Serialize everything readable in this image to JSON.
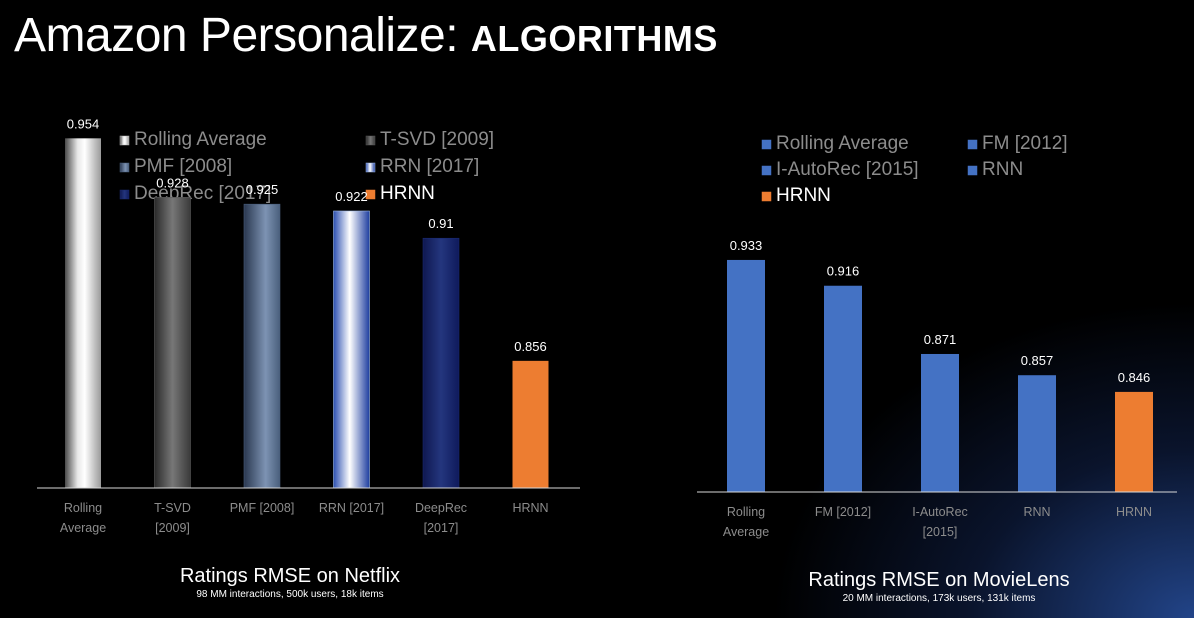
{
  "slide": {
    "title_main": "Amazon Personalize:",
    "title_strong": "ALGORITHMS"
  },
  "chart_data": [
    {
      "type": "bar",
      "title": "Ratings RMSE on Netflix",
      "subtitle": "98 MM interactions, 500k users, 18k items",
      "categories": [
        [
          "Rolling",
          "Average"
        ],
        [
          "T-SVD",
          "[2009]"
        ],
        [
          "PMF [2008]"
        ],
        [
          "RRN [2017]"
        ],
        [
          "DeepRec",
          "[2017]"
        ],
        [
          "HRNN"
        ]
      ],
      "values": [
        0.954,
        0.928,
        0.925,
        0.922,
        0.91,
        0.856
      ],
      "value_labels": [
        "0.954",
        "0.928",
        "0.925",
        "0.922",
        "0.91",
        "0.856"
      ],
      "legend": [
        "Rolling Average",
        "T-SVD [2009]",
        "PMF [2008]",
        "RRN [2017]",
        "DeepRec [2017]",
        "HRNN"
      ],
      "colors": [
        "#b8b8b8",
        "#5a5a5a",
        "#4a5f7c",
        "#9db9e6",
        "#1a2a70",
        "#ed7d31"
      ],
      "bar_styles": [
        "grad-white",
        "grad-dark",
        "grad-steel",
        "grad-blue",
        "grad-navy",
        "solid-orange"
      ],
      "ylim": [
        0.8,
        0.97
      ],
      "legend_placement": "top",
      "grid": false
    },
    {
      "type": "bar",
      "title": "Ratings RMSE on MovieLens",
      "subtitle": "20 MM interactions, 173k users, 131k items",
      "categories": [
        [
          "Rolling",
          "Average"
        ],
        [
          "FM [2012]"
        ],
        [
          "I-AutoRec",
          "[2015]"
        ],
        [
          "RNN"
        ],
        [
          "HRNN"
        ]
      ],
      "values": [
        0.933,
        0.916,
        0.871,
        0.857,
        0.846
      ],
      "value_labels": [
        "0.933",
        "0.916",
        "0.871",
        "0.857",
        "0.846"
      ],
      "legend": [
        "Rolling Average",
        "FM [2012]",
        "I-AutoRec [2015]",
        "RNN",
        "HRNN"
      ],
      "colors": [
        "#4472c4",
        "#4472c4",
        "#4472c4",
        "#4472c4",
        "#ed7d31"
      ],
      "ylim": [
        0.78,
        0.96
      ],
      "legend_placement": "top",
      "grid": false
    }
  ]
}
